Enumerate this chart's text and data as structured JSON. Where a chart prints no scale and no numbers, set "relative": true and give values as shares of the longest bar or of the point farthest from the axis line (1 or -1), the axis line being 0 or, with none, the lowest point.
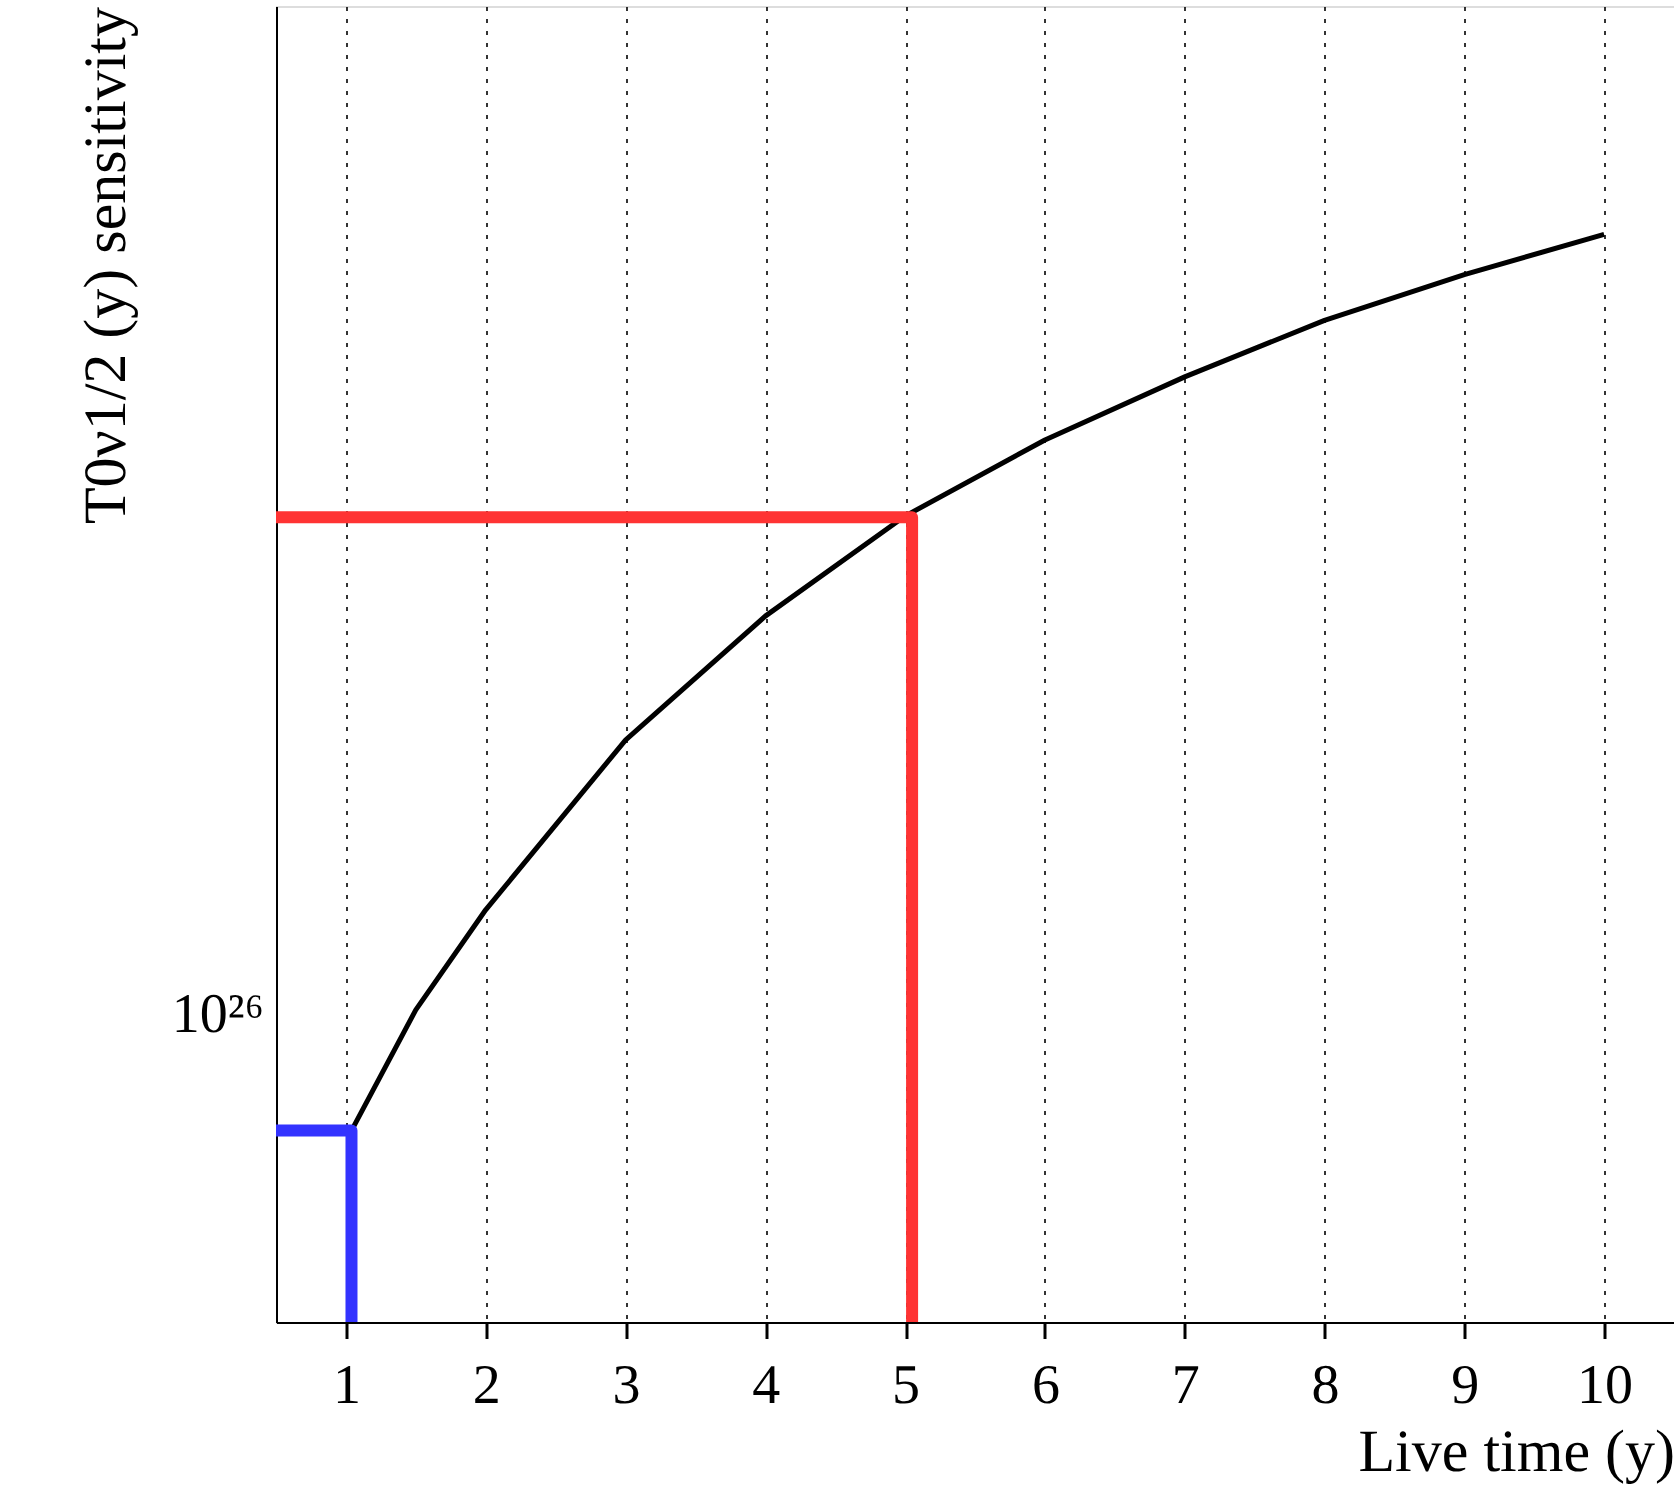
{
  "chart_data": {
    "type": "line",
    "xlabel": "Live time (y)",
    "ylabel": "T0ν1/2 (y) sensitivity",
    "relative": true,
    "grid": "x",
    "marker": "none",
    "line_style": "solid",
    "annotations": [
      "10²⁶"
    ],
    "xlim": [
      0.5,
      10.5
    ],
    "xticks": [
      1,
      2,
      3,
      4,
      5,
      6,
      7,
      8,
      9,
      10
    ],
    "series": [
      {
        "color": "#000000",
        "x": [
          1.04,
          1.5,
          2,
          3,
          4,
          5,
          6,
          7,
          8,
          9,
          10
        ],
        "values": [
          0.176,
          0.287,
          0.379,
          0.535,
          0.649,
          0.741,
          0.811,
          0.869,
          0.921,
          0.963,
          1
        ]
      },
      {
        "color": "#ff3333",
        "x": [
          0.5,
          5.05,
          5.05
        ],
        "values": [
          0.74,
          0.74,
          0
        ]
      },
      {
        "color": "#3333ff",
        "x": [
          0.5,
          1.04,
          1.04
        ],
        "values": [
          0.176,
          0.176,
          0
        ]
      }
    ]
  }
}
